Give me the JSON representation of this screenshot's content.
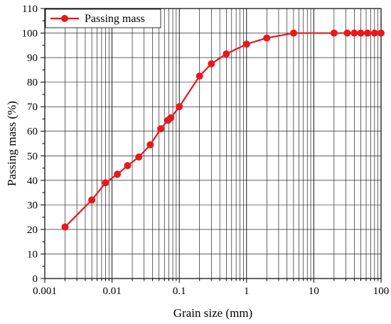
{
  "chart_data": {
    "type": "line",
    "title": "",
    "xlabel": "Grain size (mm)",
    "ylabel": "Passing mass (%)",
    "xscale": "log",
    "xlim": [
      0.001,
      100
    ],
    "ylim": [
      0,
      110
    ],
    "x_ticks": [
      0.001,
      0.01,
      0.1,
      1,
      10,
      100
    ],
    "x_tick_labels": [
      "0.001",
      "0.01",
      "0.1",
      "1",
      "10",
      "100"
    ],
    "y_ticks": [
      0,
      10,
      20,
      30,
      40,
      50,
      60,
      70,
      80,
      90,
      100,
      110
    ],
    "y_tick_labels": [
      "0",
      "10",
      "20",
      "30",
      "40",
      "50",
      "60",
      "70",
      "80",
      "90",
      "100",
      "110"
    ],
    "grid": true,
    "legend_position": "top-left",
    "series": [
      {
        "name": "Passing mass",
        "color": "#e8191c",
        "marker": "circle",
        "x": [
          0.002,
          0.005,
          0.008,
          0.012,
          0.017,
          0.025,
          0.037,
          0.053,
          0.068,
          0.075,
          0.1,
          0.2,
          0.3,
          0.5,
          1,
          2,
          5,
          20,
          31.5,
          40,
          50,
          63,
          80,
          100
        ],
        "y": [
          21,
          32,
          39,
          42.5,
          46,
          49.5,
          54.5,
          61,
          64.5,
          65.5,
          70,
          82.5,
          87.5,
          91.5,
          95.5,
          98,
          100,
          100,
          100,
          100,
          100,
          100,
          100,
          100
        ]
      }
    ]
  }
}
